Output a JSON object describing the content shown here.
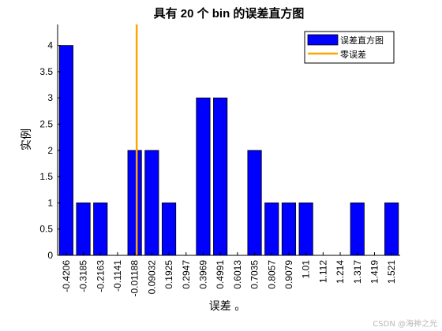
{
  "chart_data": {
    "type": "bar",
    "title": "具有 20 个 bin 的误差直方图",
    "xlabel": "误差 。",
    "ylabel": "实例",
    "categories": [
      "-0.4206",
      "-0.3185",
      "-0.2163",
      "-0.1141",
      "-0.01188",
      "0.09032",
      "0.1925",
      "0.2947",
      "0.3969",
      "0.4991",
      "0.6013",
      "0.7035",
      "0.8057",
      "0.9079",
      "1.01",
      "1.112",
      "1.214",
      "1.317",
      "1.419",
      "1.521"
    ],
    "series": [
      {
        "name": "误差直方图",
        "color": "#0000ff",
        "values": [
          4,
          1,
          1,
          0,
          2,
          2,
          1,
          0,
          3,
          3,
          0,
          2,
          1,
          1,
          1,
          0,
          0,
          1,
          0,
          1
        ]
      }
    ],
    "zero_line": {
      "name": "零误差",
      "color": "#ffa500",
      "x": 0
    },
    "ylim": [
      0,
      4.4
    ],
    "yticks": [
      "0",
      "0.5",
      "1",
      "1.5",
      "2",
      "2.5",
      "3",
      "3.5",
      "4"
    ],
    "grid": false,
    "legend_position": "top-right"
  },
  "watermark": "CSDN @海神之光"
}
